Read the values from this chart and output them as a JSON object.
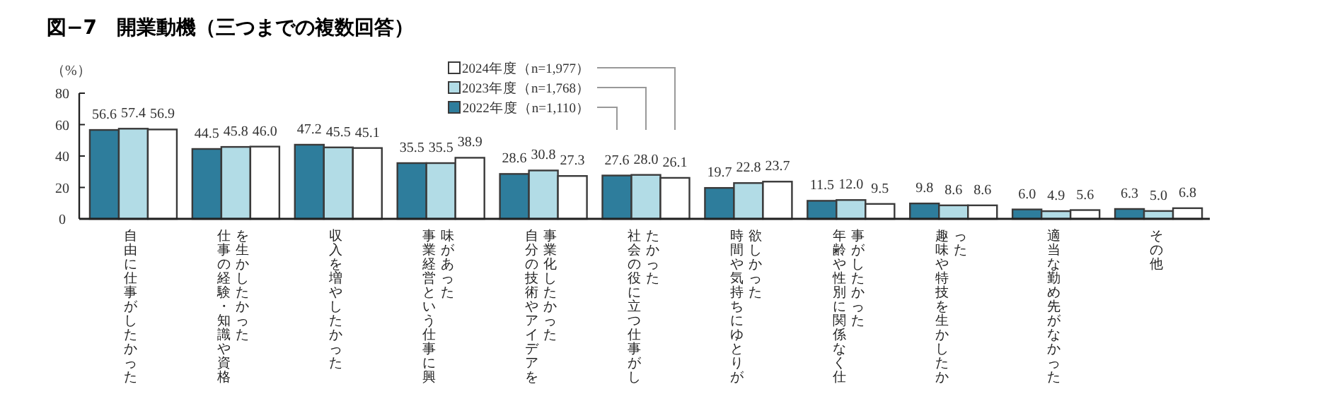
{
  "chart_data": {
    "type": "bar",
    "title": "図−7　開業動機（三つまでの複数回答）",
    "ylabel": "（%）",
    "categories": [
      "自由に仕事がしたかった",
      "仕事の経験・知識や資格を生かしたかった",
      "収入を増やしたかった",
      "事業経営という仕事に興味があった",
      "自分の技術やアイデアを事業化したかった",
      "社会の役に立つ仕事がしたかった",
      "時間や気持ちにゆとりが欲しかった",
      "年齢や性別に関係なく仕事がしたかった",
      "趣味や特技を生かしたかった",
      "適当な勤め先がなかった",
      "その他"
    ],
    "series": [
      {
        "name": "2022年度（n=1,110）",
        "color": "#2e7d9c",
        "values": [
          56.6,
          44.5,
          47.2,
          35.5,
          28.6,
          27.6,
          19.7,
          11.5,
          9.8,
          6.0,
          6.3
        ],
        "value_labels": [
          "56.6",
          "44.5",
          "47.2",
          "35.5",
          "28.6",
          "27.6",
          "19.7",
          "11.5",
          "9.8",
          "6.0",
          "6.3"
        ]
      },
      {
        "name": "2023年度（n=1,768）",
        "color": "#b2dce6",
        "values": [
          57.4,
          45.8,
          45.5,
          35.5,
          30.8,
          28.0,
          22.8,
          12.0,
          8.6,
          4.9,
          5.0
        ],
        "value_labels": [
          "57.4",
          "45.8",
          "45.5",
          "35.5",
          "30.8",
          "28.0",
          "22.8",
          "12.0",
          "8.6",
          "4.9",
          "5.0"
        ]
      },
      {
        "name": "2024年度（n=1,977）",
        "color": "#ffffff",
        "values": [
          56.9,
          46.0,
          45.1,
          38.9,
          27.3,
          26.1,
          23.7,
          9.5,
          8.6,
          5.6,
          6.8
        ],
        "value_labels": [
          "56.9",
          "46.0",
          "45.1",
          "38.9",
          "27.3",
          "26.1",
          "23.7",
          "9.5",
          "8.6",
          "5.6",
          "6.8"
        ]
      }
    ],
    "ylim": [
      0,
      80
    ],
    "yticks": [
      0,
      20,
      40,
      60,
      80
    ],
    "legend": "top",
    "grid": false
  }
}
